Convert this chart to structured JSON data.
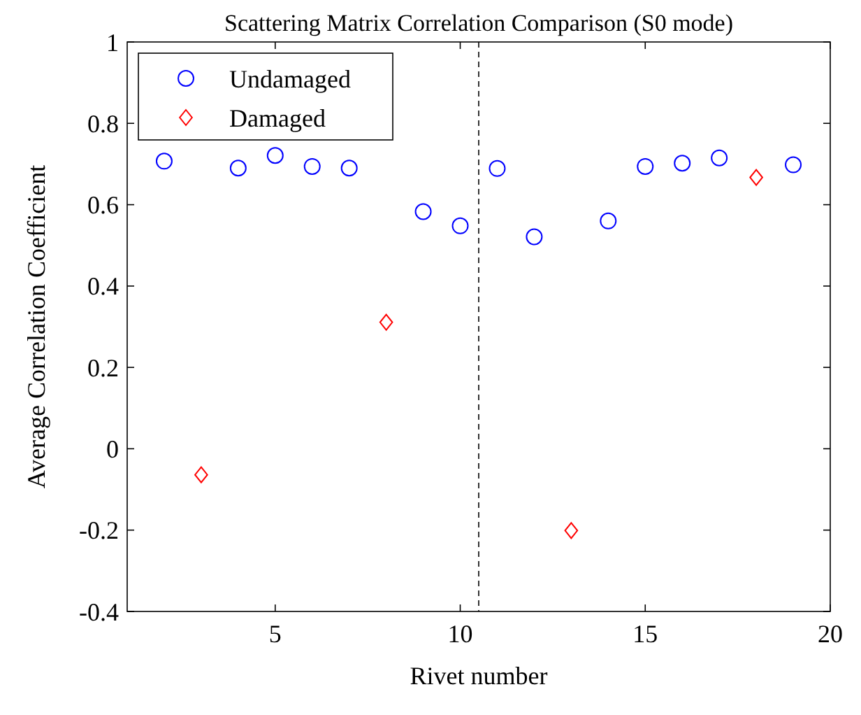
{
  "chart_data": {
    "type": "scatter",
    "title": "Scattering Matrix Correlation Comparison (S0 mode)",
    "xlabel": "Rivet number",
    "ylabel": "Average Correlation Coefficient",
    "xlim": [
      1,
      20
    ],
    "xticks": [
      5,
      10,
      15,
      20
    ],
    "ylim": [
      -0.4,
      1
    ],
    "yticks": [
      -0.4,
      -0.2,
      0,
      0.2,
      0.4,
      0.6,
      0.8,
      1
    ],
    "legend": "top left",
    "grid": false,
    "ref_lines": [
      {
        "axis": "x",
        "value": 10.5,
        "color": "#000000",
        "line_style": "dashed"
      }
    ],
    "series": [
      {
        "name": "Undamaged",
        "color": "#0000ff",
        "marker": "circle",
        "x": [
          2,
          4,
          5,
          6,
          7,
          9,
          10,
          11,
          12,
          14,
          15,
          16,
          17,
          19
        ],
        "values": [
          0.707,
          0.69,
          0.721,
          0.694,
          0.69,
          0.583,
          0.548,
          0.689,
          0.521,
          0.56,
          0.694,
          0.702,
          0.715,
          0.698
        ]
      },
      {
        "name": "Damaged",
        "color": "#ff0000",
        "marker": "diamond",
        "x": [
          3,
          8,
          13,
          18
        ],
        "values": [
          -0.064,
          0.311,
          -0.201,
          0.667
        ]
      }
    ]
  }
}
